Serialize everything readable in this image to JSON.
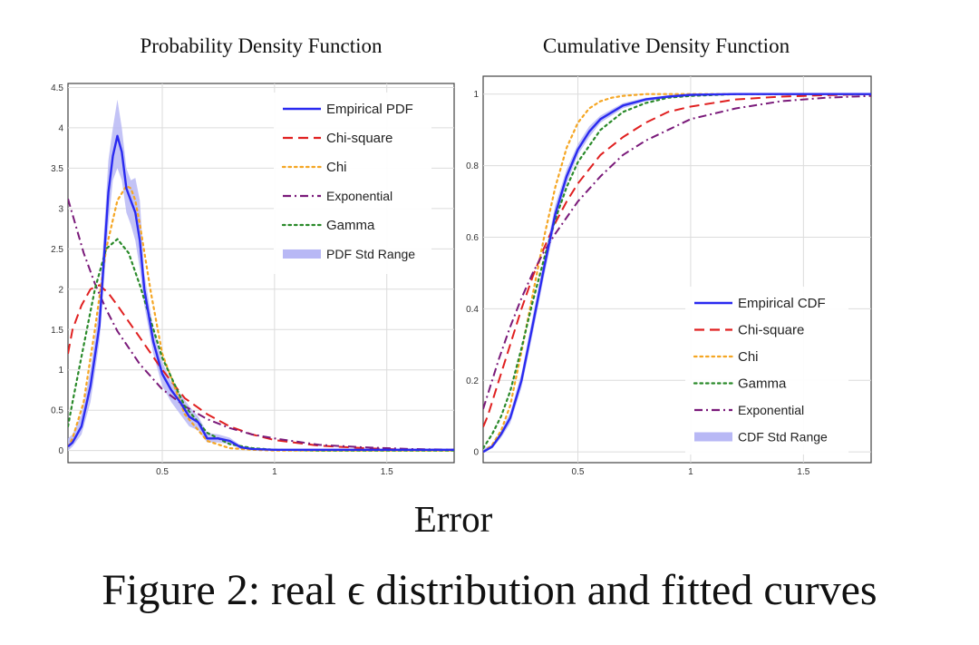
{
  "xlabel": "Error",
  "caption": "Figure 2: real ϵ distribution and fitted curves",
  "colors": {
    "empirical": "#2a2af0",
    "chisq": "#e02020",
    "chi": "#f5a623",
    "exponential": "#7a1a7a",
    "gamma": "#2a8a2a",
    "band": "#b8b8f5"
  },
  "chart_data": [
    {
      "type": "line",
      "title": "Probability Density Function",
      "xlim": [
        0.08,
        1.8
      ],
      "ylim": [
        -0.15,
        4.55
      ],
      "xticks": [
        0.5,
        1,
        1.5
      ],
      "xtick_labels": [
        "0.5",
        "1",
        "1.5"
      ],
      "yticks": [
        0,
        0.5,
        1,
        1.5,
        2,
        2.5,
        3,
        3.5,
        4,
        4.5
      ],
      "ytick_labels": [
        "0",
        "0.5",
        "1",
        "1.5",
        "2",
        "2.5",
        "3",
        "3.5",
        "4",
        "4.5"
      ],
      "grid": true,
      "legend_position": "top-right",
      "band": {
        "name": "PDF Std Range",
        "x": [
          0.08,
          0.1,
          0.14,
          0.18,
          0.22,
          0.26,
          0.28,
          0.3,
          0.32,
          0.34,
          0.36,
          0.38,
          0.4,
          0.42,
          0.46,
          0.5,
          0.54,
          0.58,
          0.62,
          0.66,
          0.7,
          0.75,
          0.8,
          0.85,
          0.9,
          1.0,
          1.2,
          1.5,
          1.8
        ],
        "lower": [
          0.0,
          0.05,
          0.2,
          0.6,
          1.35,
          2.8,
          3.35,
          3.5,
          3.35,
          2.95,
          2.8,
          2.6,
          2.25,
          1.8,
          1.2,
          0.8,
          0.6,
          0.45,
          0.3,
          0.25,
          0.1,
          0.1,
          0.08,
          0.02,
          0.01,
          0.01,
          0.01,
          0.01,
          0.01
        ],
        "upper": [
          0.15,
          0.2,
          0.45,
          1.0,
          1.8,
          3.6,
          4.0,
          4.35,
          4.0,
          3.5,
          3.35,
          3.38,
          3.1,
          2.2,
          1.5,
          1.1,
          0.85,
          0.7,
          0.55,
          0.42,
          0.22,
          0.2,
          0.16,
          0.06,
          0.03,
          0.02,
          0.02,
          0.02,
          0.02
        ]
      },
      "series": [
        {
          "name": "Empirical PDF",
          "style": "solid",
          "color_key": "empirical",
          "x": [
            0.08,
            0.1,
            0.14,
            0.18,
            0.22,
            0.26,
            0.28,
            0.3,
            0.32,
            0.34,
            0.36,
            0.38,
            0.4,
            0.42,
            0.46,
            0.5,
            0.54,
            0.58,
            0.62,
            0.66,
            0.7,
            0.75,
            0.8,
            0.85,
            0.9,
            1.0,
            1.2,
            1.5,
            1.8
          ],
          "y": [
            0.05,
            0.1,
            0.3,
            0.8,
            1.55,
            3.2,
            3.65,
            3.9,
            3.7,
            3.25,
            3.1,
            2.95,
            2.6,
            2.0,
            1.35,
            0.95,
            0.75,
            0.6,
            0.42,
            0.35,
            0.15,
            0.15,
            0.12,
            0.04,
            0.02,
            0.01,
            0.01,
            0.01,
            0.01
          ]
        },
        {
          "name": "Chi-square",
          "style": "dash",
          "color_key": "chisq",
          "x": [
            0.08,
            0.1,
            0.14,
            0.18,
            0.22,
            0.26,
            0.3,
            0.35,
            0.4,
            0.45,
            0.5,
            0.6,
            0.7,
            0.8,
            0.9,
            1.0,
            1.2,
            1.4,
            1.6,
            1.8
          ],
          "y": [
            1.2,
            1.5,
            1.8,
            2.0,
            2.05,
            1.95,
            1.8,
            1.6,
            1.4,
            1.2,
            1.0,
            0.65,
            0.45,
            0.3,
            0.2,
            0.13,
            0.06,
            0.03,
            0.01,
            0.01
          ]
        },
        {
          "name": "Chi",
          "style": "dot",
          "color_key": "chi",
          "x": [
            0.08,
            0.1,
            0.15,
            0.2,
            0.25,
            0.3,
            0.34,
            0.36,
            0.38,
            0.4,
            0.45,
            0.5,
            0.6,
            0.7,
            0.8,
            0.9,
            1.0,
            1.2,
            1.8
          ],
          "y": [
            0.05,
            0.15,
            0.6,
            1.5,
            2.5,
            3.1,
            3.28,
            3.25,
            3.1,
            2.8,
            1.95,
            1.2,
            0.45,
            0.12,
            0.03,
            0.01,
            0.0,
            0.0,
            0.0
          ]
        },
        {
          "name": "Exponential",
          "style": "dashdot",
          "color_key": "exponential",
          "x": [
            0.08,
            0.15,
            0.2,
            0.25,
            0.3,
            0.4,
            0.5,
            0.6,
            0.7,
            0.8,
            0.9,
            1.0,
            1.2,
            1.4,
            1.6,
            1.8
          ],
          "y": [
            3.12,
            2.45,
            2.07,
            1.75,
            1.48,
            1.07,
            0.76,
            0.55,
            0.39,
            0.28,
            0.2,
            0.15,
            0.07,
            0.04,
            0.02,
            0.01
          ]
        },
        {
          "name": "Gamma",
          "style": "dot",
          "color_key": "gamma",
          "x": [
            0.08,
            0.1,
            0.15,
            0.2,
            0.25,
            0.3,
            0.35,
            0.4,
            0.45,
            0.5,
            0.6,
            0.7,
            0.8,
            0.9,
            1.0,
            1.2,
            1.8
          ],
          "y": [
            0.3,
            0.6,
            1.3,
            2.0,
            2.5,
            2.62,
            2.45,
            2.05,
            1.6,
            1.15,
            0.55,
            0.22,
            0.08,
            0.03,
            0.01,
            0.0,
            0.0
          ]
        }
      ],
      "legend_order": [
        "Empirical PDF",
        "Chi-square",
        "Chi",
        "Exponential",
        "Gamma",
        "PDF Std Range"
      ]
    },
    {
      "type": "line",
      "title": "Cumulative Density Function",
      "xlim": [
        0.08,
        1.8
      ],
      "ylim": [
        -0.03,
        1.05
      ],
      "xticks": [
        0.5,
        1,
        1.5
      ],
      "xtick_labels": [
        "0.5",
        "1",
        "1.5"
      ],
      "yticks": [
        0,
        0.2,
        0.4,
        0.6,
        0.8,
        1
      ],
      "ytick_labels": [
        "0",
        "0.2",
        "0.4",
        "0.6",
        "0.8",
        "1"
      ],
      "grid": true,
      "legend_position": "bottom-right",
      "band": {
        "name": "CDF Std Range",
        "x": [
          0.08,
          0.12,
          0.16,
          0.2,
          0.25,
          0.3,
          0.35,
          0.4,
          0.45,
          0.5,
          0.55,
          0.6,
          0.7,
          0.8,
          0.9,
          1.0,
          1.2,
          1.5,
          1.8
        ],
        "lower": [
          0.0,
          0.01,
          0.04,
          0.08,
          0.18,
          0.33,
          0.49,
          0.64,
          0.75,
          0.83,
          0.88,
          0.92,
          0.96,
          0.98,
          0.99,
          0.995,
          0.998,
          1.0,
          1.0
        ],
        "upper": [
          0.01,
          0.02,
          0.06,
          0.11,
          0.22,
          0.38,
          0.54,
          0.69,
          0.79,
          0.86,
          0.91,
          0.94,
          0.975,
          0.99,
          0.995,
          1.0,
          1.0,
          1.0,
          1.0
        ]
      },
      "series": [
        {
          "name": "Empirical CDF",
          "style": "solid",
          "color_key": "empirical",
          "x": [
            0.08,
            0.12,
            0.16,
            0.2,
            0.25,
            0.3,
            0.35,
            0.4,
            0.45,
            0.5,
            0.55,
            0.6,
            0.7,
            0.8,
            0.9,
            1.0,
            1.2,
            1.5,
            1.8
          ],
          "y": [
            0.0,
            0.015,
            0.05,
            0.095,
            0.2,
            0.355,
            0.515,
            0.665,
            0.77,
            0.845,
            0.895,
            0.93,
            0.968,
            0.985,
            0.993,
            0.998,
            1.0,
            1.0,
            1.0
          ]
        },
        {
          "name": "Chi-square",
          "style": "dash",
          "color_key": "chisq",
          "x": [
            0.08,
            0.1,
            0.15,
            0.2,
            0.25,
            0.3,
            0.35,
            0.4,
            0.45,
            0.5,
            0.6,
            0.7,
            0.8,
            0.9,
            1.0,
            1.2,
            1.4,
            1.6,
            1.8
          ],
          "y": [
            0.07,
            0.1,
            0.2,
            0.3,
            0.4,
            0.49,
            0.57,
            0.64,
            0.7,
            0.75,
            0.83,
            0.88,
            0.92,
            0.95,
            0.965,
            0.985,
            0.993,
            0.997,
            1.0
          ]
        },
        {
          "name": "Chi",
          "style": "dot",
          "color_key": "chi",
          "x": [
            0.08,
            0.12,
            0.16,
            0.2,
            0.25,
            0.3,
            0.35,
            0.4,
            0.45,
            0.5,
            0.55,
            0.6,
            0.65,
            0.7,
            0.8,
            1.0,
            1.8
          ],
          "y": [
            0.0,
            0.02,
            0.06,
            0.13,
            0.28,
            0.44,
            0.6,
            0.74,
            0.85,
            0.92,
            0.96,
            0.98,
            0.99,
            0.995,
            1.0,
            1.0,
            1.0
          ]
        },
        {
          "name": "Gamma",
          "style": "dot",
          "color_key": "gamma",
          "x": [
            0.08,
            0.12,
            0.16,
            0.2,
            0.25,
            0.3,
            0.35,
            0.4,
            0.45,
            0.5,
            0.6,
            0.7,
            0.8,
            0.9,
            1.0,
            1.2,
            1.8
          ],
          "y": [
            0.01,
            0.05,
            0.1,
            0.17,
            0.29,
            0.42,
            0.54,
            0.65,
            0.74,
            0.81,
            0.9,
            0.95,
            0.975,
            0.99,
            0.995,
            1.0,
            1.0
          ]
        },
        {
          "name": "Exponential",
          "style": "dashdot",
          "color_key": "exponential",
          "x": [
            0.08,
            0.1,
            0.15,
            0.2,
            0.25,
            0.3,
            0.35,
            0.4,
            0.5,
            0.6,
            0.7,
            0.8,
            0.9,
            1.0,
            1.2,
            1.4,
            1.6,
            1.8
          ],
          "y": [
            0.12,
            0.16,
            0.26,
            0.35,
            0.43,
            0.5,
            0.56,
            0.61,
            0.7,
            0.77,
            0.83,
            0.87,
            0.9,
            0.93,
            0.96,
            0.98,
            0.99,
            0.995
          ]
        }
      ],
      "legend_order": [
        "Empirical CDF",
        "Chi-square",
        "Chi",
        "Gamma",
        "Exponential",
        "CDF Std Range"
      ]
    }
  ]
}
